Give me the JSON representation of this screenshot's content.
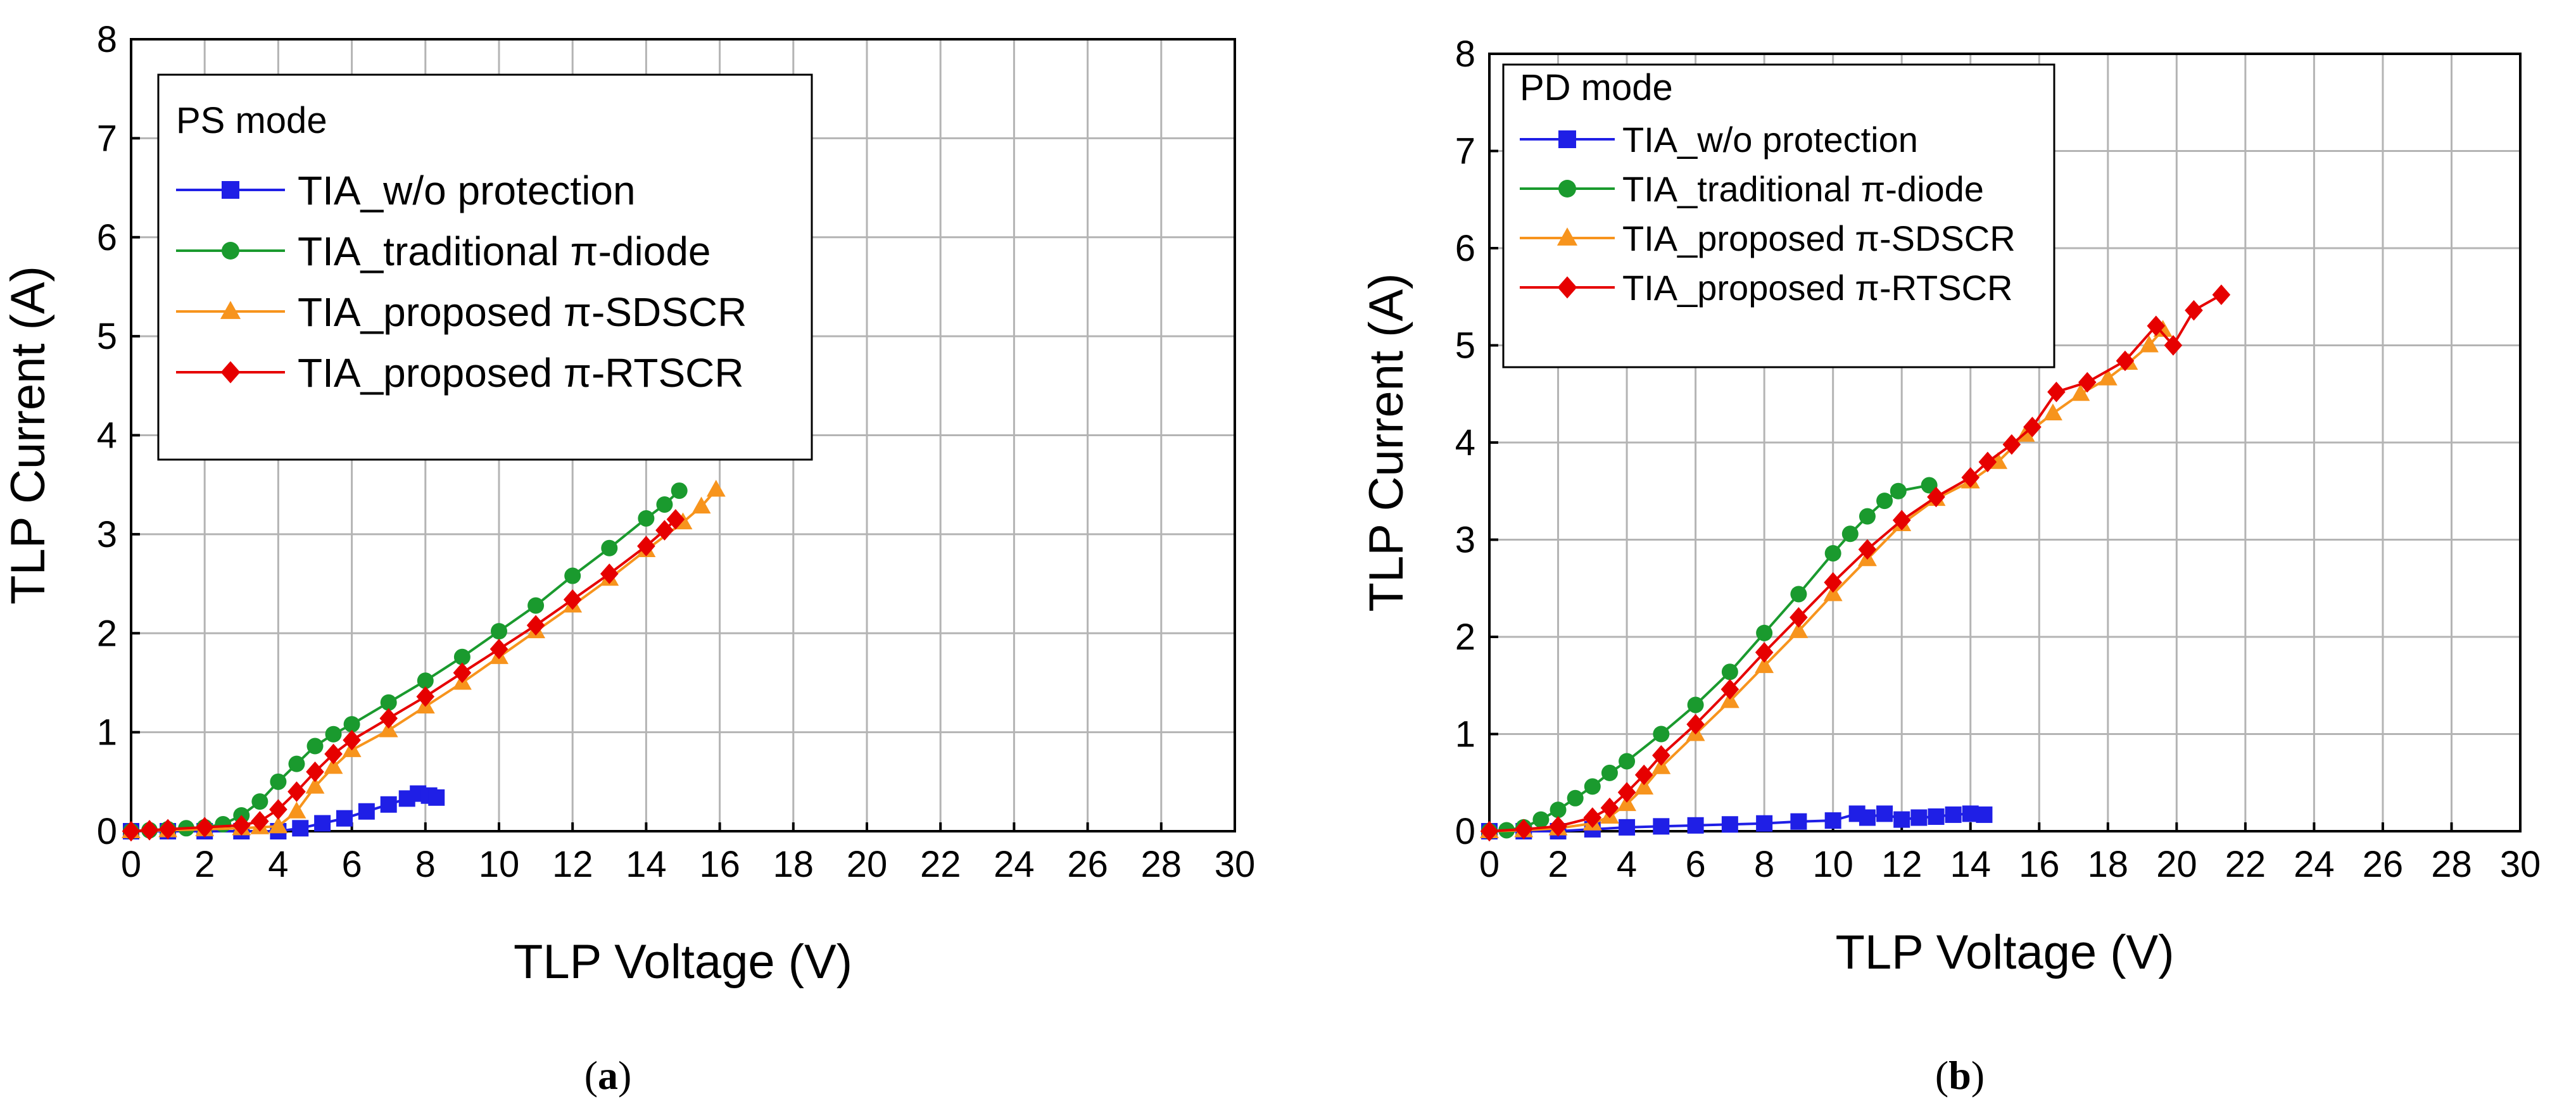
{
  "chart_data": [
    {
      "type": "line",
      "panel": "(a)",
      "caption_prefix": "(",
      "caption_letter": "a",
      "caption_suffix": ")",
      "title": "",
      "xlabel": "TLP Voltage (V)",
      "ylabel": "TLP Current (A)",
      "xlim": [
        0,
        30
      ],
      "ylim": [
        0,
        8
      ],
      "xticks": [
        0,
        2,
        4,
        6,
        8,
        10,
        12,
        14,
        16,
        18,
        20,
        22,
        24,
        26,
        28,
        30
      ],
      "yticks": [
        0,
        1,
        2,
        3,
        4,
        5,
        6,
        7,
        8
      ],
      "grid": true,
      "legend_title": "PS mode",
      "legend_position": "top-left",
      "series": [
        {
          "name": "TIA_w/o protection",
          "color": "#1f1fe6",
          "marker": "square",
          "points": [
            [
              0,
              0
            ],
            [
              1,
              0
            ],
            [
              2,
              0
            ],
            [
              3,
              0
            ],
            [
              4,
              0
            ],
            [
              4.6,
              0.03
            ],
            [
              5.2,
              0.08
            ],
            [
              5.8,
              0.13
            ],
            [
              6.4,
              0.2
            ],
            [
              7,
              0.27
            ],
            [
              7.5,
              0.33
            ],
            [
              7.8,
              0.38
            ],
            [
              8.1,
              0.36
            ],
            [
              8.3,
              0.34
            ]
          ]
        },
        {
          "name": "TIA_traditional π-diode",
          "color": "#1a9a2e",
          "marker": "circle",
          "points": [
            [
              0,
              0
            ],
            [
              0.5,
              0.01
            ],
            [
              1,
              0.02
            ],
            [
              1.5,
              0.03
            ],
            [
              2,
              0.04
            ],
            [
              2.5,
              0.07
            ],
            [
              3,
              0.16
            ],
            [
              3.5,
              0.3
            ],
            [
              4,
              0.5
            ],
            [
              4.5,
              0.68
            ],
            [
              5,
              0.86
            ],
            [
              5.5,
              0.98
            ],
            [
              6,
              1.08
            ],
            [
              7,
              1.3
            ],
            [
              8,
              1.52
            ],
            [
              9,
              1.76
            ],
            [
              10,
              2.02
            ],
            [
              11,
              2.28
            ],
            [
              12,
              2.58
            ],
            [
              13,
              2.86
            ],
            [
              14,
              3.16
            ],
            [
              14.5,
              3.3
            ],
            [
              14.9,
              3.44
            ]
          ]
        },
        {
          "name": "TIA_proposed π-SDSCR",
          "color": "#f7941d",
          "marker": "triangle",
          "points": [
            [
              0,
              0
            ],
            [
              1,
              0.01
            ],
            [
              2,
              0.02
            ],
            [
              3,
              0.03
            ],
            [
              3.5,
              0.04
            ],
            [
              4,
              0.05
            ],
            [
              4.5,
              0.2
            ],
            [
              5,
              0.45
            ],
            [
              5.5,
              0.65
            ],
            [
              6,
              0.82
            ],
            [
              7,
              1.02
            ],
            [
              8,
              1.26
            ],
            [
              9,
              1.5
            ],
            [
              10,
              1.76
            ],
            [
              11,
              2.02
            ],
            [
              12,
              2.28
            ],
            [
              13,
              2.55
            ],
            [
              14,
              2.84
            ],
            [
              15,
              3.12
            ],
            [
              15.5,
              3.28
            ],
            [
              15.9,
              3.45
            ]
          ]
        },
        {
          "name": "TIA_proposed π-RTSCR",
          "color": "#e60000",
          "marker": "diamond",
          "points": [
            [
              0,
              0
            ],
            [
              0.5,
              0.01
            ],
            [
              1,
              0.02
            ],
            [
              2,
              0.04
            ],
            [
              3,
              0.06
            ],
            [
              3.5,
              0.1
            ],
            [
              4,
              0.22
            ],
            [
              4.5,
              0.4
            ],
            [
              5,
              0.6
            ],
            [
              5.5,
              0.78
            ],
            [
              6,
              0.92
            ],
            [
              7,
              1.14
            ],
            [
              8,
              1.36
            ],
            [
              9,
              1.6
            ],
            [
              10,
              1.84
            ],
            [
              11,
              2.08
            ],
            [
              12,
              2.34
            ],
            [
              13,
              2.6
            ],
            [
              14,
              2.88
            ],
            [
              14.5,
              3.04
            ],
            [
              14.8,
              3.15
            ]
          ]
        }
      ]
    },
    {
      "type": "line",
      "panel": "(b)",
      "caption_prefix": "(",
      "caption_letter": "b",
      "caption_suffix": ")",
      "title": "",
      "xlabel": "TLP Voltage (V)",
      "ylabel": "TLP Current (A)",
      "xlim": [
        0,
        30
      ],
      "ylim": [
        0,
        8
      ],
      "xticks": [
        0,
        2,
        4,
        6,
        8,
        10,
        12,
        14,
        16,
        18,
        20,
        22,
        24,
        26,
        28,
        30
      ],
      "yticks": [
        0,
        1,
        2,
        3,
        4,
        5,
        6,
        7,
        8
      ],
      "grid": true,
      "legend_title": "PD mode",
      "legend_position": "top-left",
      "series": [
        {
          "name": "TIA_w/o protection",
          "color": "#1f1fe6",
          "marker": "square",
          "points": [
            [
              0,
              0
            ],
            [
              1,
              0
            ],
            [
              2,
              0
            ],
            [
              3,
              0.02
            ],
            [
              4,
              0.04
            ],
            [
              5,
              0.05
            ],
            [
              6,
              0.06
            ],
            [
              7,
              0.07
            ],
            [
              8,
              0.08
            ],
            [
              9,
              0.1
            ],
            [
              10,
              0.11
            ],
            [
              10.7,
              0.18
            ],
            [
              11,
              0.14
            ],
            [
              11.5,
              0.18
            ],
            [
              12,
              0.12
            ],
            [
              12.5,
              0.14
            ],
            [
              13,
              0.15
            ],
            [
              13.5,
              0.17
            ],
            [
              14,
              0.18
            ],
            [
              14.4,
              0.17
            ]
          ]
        },
        {
          "name": "TIA_traditional π-diode",
          "color": "#1a9a2e",
          "marker": "circle",
          "points": [
            [
              0,
              0
            ],
            [
              0.5,
              0.01
            ],
            [
              1,
              0.04
            ],
            [
              1.5,
              0.12
            ],
            [
              2,
              0.22
            ],
            [
              2.5,
              0.34
            ],
            [
              3,
              0.46
            ],
            [
              3.5,
              0.6
            ],
            [
              4,
              0.72
            ],
            [
              5,
              1.0
            ],
            [
              6,
              1.3
            ],
            [
              7,
              1.64
            ],
            [
              8,
              2.04
            ],
            [
              9,
              2.44
            ],
            [
              10,
              2.86
            ],
            [
              10.5,
              3.06
            ],
            [
              11,
              3.24
            ],
            [
              11.5,
              3.4
            ],
            [
              11.9,
              3.5
            ],
            [
              12.8,
              3.56
            ]
          ]
        },
        {
          "name": "TIA_proposed π-SDSCR",
          "color": "#f7941d",
          "marker": "triangle",
          "points": [
            [
              0,
              0
            ],
            [
              1,
              0.01
            ],
            [
              2,
              0.03
            ],
            [
              3,
              0.08
            ],
            [
              3.5,
              0.15
            ],
            [
              4,
              0.28
            ],
            [
              4.5,
              0.45
            ],
            [
              5,
              0.66
            ],
            [
              6,
              1.0
            ],
            [
              7,
              1.34
            ],
            [
              8,
              1.7
            ],
            [
              9,
              2.06
            ],
            [
              10,
              2.44
            ],
            [
              11,
              2.8
            ],
            [
              12,
              3.16
            ],
            [
              13,
              3.42
            ],
            [
              14,
              3.6
            ],
            [
              14.8,
              3.8
            ],
            [
              15.6,
              4.08
            ],
            [
              16.4,
              4.3
            ],
            [
              17.2,
              4.5
            ],
            [
              18,
              4.66
            ],
            [
              18.6,
              4.82
            ],
            [
              19.2,
              5.0
            ],
            [
              19.6,
              5.16
            ]
          ]
        },
        {
          "name": "TIA_proposed π-RTSCR",
          "color": "#e60000",
          "marker": "diamond",
          "points": [
            [
              0,
              0
            ],
            [
              1,
              0.02
            ],
            [
              2,
              0.05
            ],
            [
              3,
              0.14
            ],
            [
              3.5,
              0.24
            ],
            [
              4,
              0.4
            ],
            [
              4.5,
              0.58
            ],
            [
              5,
              0.78
            ],
            [
              6,
              1.1
            ],
            [
              7,
              1.46
            ],
            [
              8,
              1.84
            ],
            [
              9,
              2.2
            ],
            [
              10,
              2.56
            ],
            [
              11,
              2.9
            ],
            [
              12,
              3.2
            ],
            [
              13,
              3.44
            ],
            [
              14,
              3.64
            ],
            [
              14.5,
              3.8
            ],
            [
              15.2,
              3.98
            ],
            [
              15.8,
              4.16
            ],
            [
              16.5,
              4.52
            ],
            [
              17.4,
              4.62
            ],
            [
              18.5,
              4.84
            ],
            [
              19.4,
              5.2
            ],
            [
              19.9,
              5.0
            ],
            [
              20.5,
              5.36
            ],
            [
              21.3,
              5.52
            ]
          ]
        }
      ]
    }
  ]
}
